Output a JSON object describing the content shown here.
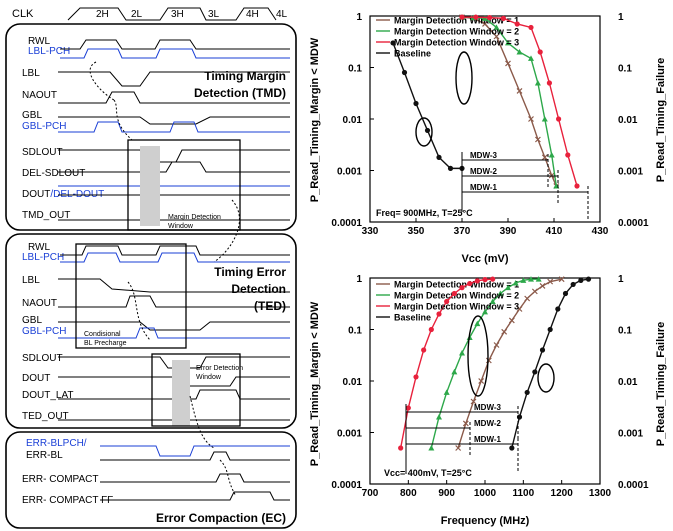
{
  "timing": {
    "header": {
      "clk": "CLK",
      "phases": [
        "2H",
        "2L",
        "3H",
        "3L",
        "4H",
        "4L"
      ]
    },
    "tmd": {
      "signals": [
        "RWL",
        "LBL-PCH",
        "LBL",
        "NAOUT",
        "GBL",
        "GBL-PCH",
        "SDLOUT",
        "DEL-SDLOUT",
        "DOUT",
        "/DEL-DOUT",
        "TMD_OUT"
      ],
      "title_line1": "Timing Margin",
      "title_line2": "Detection (TMD)",
      "window_label_line1": "Margin Detection",
      "window_label_line2": "Window"
    },
    "ted": {
      "signals": [
        "RWL",
        "LBL-PCH",
        "LBL",
        "NAOUT",
        "GBL",
        "GBL-PCH",
        "SDLOUT",
        "DOUT",
        "DOUT_LAT",
        "TED_OUT"
      ],
      "title_line1": "Timing Error",
      "title_line2": "Detection",
      "title_line3": "(TED)",
      "precharge_line1": "Condisional",
      "precharge_line2": "BL Precharge",
      "window_label_line1": "Error Detection",
      "window_label_line2": "Window"
    },
    "ec": {
      "signals": [
        "ERR-BLPCH/",
        "ERR-BL",
        "ERR- COMPACT",
        "ERR- COMPACT FF"
      ],
      "title": "Error Compaction (EC)"
    }
  },
  "chart_data": [
    {
      "type": "line",
      "xlabel": "Vcc (mV)",
      "ylabel_left": "P_Read_Timing_Margin < MDW",
      "ylabel_right": "P_Read_Timing_Failure",
      "xlim": [
        330,
        430
      ],
      "x_ticks": [
        "330",
        "350",
        "370",
        "390",
        "410",
        "430"
      ],
      "ylim": [
        0.0001,
        1
      ],
      "yscale": "log",
      "y_ticks": [
        "1",
        "0.1",
        "0.01",
        "0.001",
        "0.0001"
      ],
      "legend_position": "top-left",
      "annotation": "Freq= 900MHz, T=25°C",
      "mdw_labels": [
        "MDW-3",
        "MDW-2",
        "MDW-1"
      ],
      "series": [
        {
          "name": "Margin Detection Window = 1",
          "color": "#8b5a4a",
          "marker": "x",
          "x": [
            370,
            375,
            380,
            385,
            390,
            395,
            400,
            403,
            406,
            409,
            411
          ],
          "y": [
            0.95,
            0.9,
            0.7,
            0.4,
            0.12,
            0.035,
            0.01,
            0.004,
            0.0018,
            0.0008,
            0.0005
          ]
        },
        {
          "name": "Margin Detection Window = 2",
          "color": "#2da84a",
          "marker": "triangle",
          "x": [
            370,
            375,
            380,
            385,
            390,
            395,
            400,
            403,
            406,
            409,
            411
          ],
          "y": [
            0.95,
            0.93,
            0.9,
            0.6,
            0.3,
            0.2,
            0.15,
            0.05,
            0.01,
            0.002,
            0.0005
          ]
        },
        {
          "name": "Margin Detection Window = 3",
          "color": "#e8213c",
          "marker": "circle",
          "x": [
            370,
            376,
            382,
            388,
            394,
            400,
            404,
            408,
            412,
            416,
            420
          ],
          "y": [
            0.95,
            0.95,
            0.93,
            0.9,
            0.7,
            0.6,
            0.2,
            0.05,
            0.01,
            0.002,
            0.0005
          ]
        },
        {
          "name": "Baseline",
          "color": "#111111",
          "marker": "circle",
          "x": [
            340,
            345,
            350,
            355,
            360,
            365,
            370
          ],
          "y": [
            0.3,
            0.08,
            0.02,
            0.006,
            0.0018,
            0.0011,
            0.0011
          ]
        }
      ]
    },
    {
      "type": "line",
      "xlabel": "Frequency (MHz)",
      "ylabel_left": "P_Read_Timing_Margin < MDW",
      "ylabel_right": "P_Read_Timing_Failure",
      "xlim": [
        700,
        1300
      ],
      "x_ticks": [
        "700",
        "800",
        "900",
        "1000",
        "1100",
        "1200",
        "1300"
      ],
      "ylim": [
        0.0001,
        1
      ],
      "yscale": "log",
      "y_ticks": [
        "1",
        "0.1",
        "0.01",
        "0.001",
        "0.0001"
      ],
      "legend_position": "top-left",
      "annotation": "Vcc= 400mV, T=25°C",
      "mdw_labels": [
        "MDW-3",
        "MDW-2",
        "MDW-1"
      ],
      "series": [
        {
          "name": "Margin Detection Window = 1",
          "color": "#8b5a4a",
          "marker": "x",
          "x": [
            930,
            950,
            970,
            990,
            1010,
            1030,
            1050,
            1070,
            1090,
            1110,
            1130,
            1150,
            1170,
            1200
          ],
          "y": [
            0.0005,
            0.0015,
            0.004,
            0.01,
            0.025,
            0.05,
            0.09,
            0.15,
            0.25,
            0.4,
            0.55,
            0.7,
            0.85,
            0.95
          ]
        },
        {
          "name": "Margin Detection Window = 2",
          "color": "#2da84a",
          "marker": "triangle",
          "x": [
            860,
            880,
            900,
            920,
            940,
            960,
            980,
            1000,
            1020,
            1040,
            1060,
            1080,
            1100,
            1120,
            1140
          ],
          "y": [
            0.0005,
            0.002,
            0.006,
            0.015,
            0.035,
            0.07,
            0.13,
            0.22,
            0.35,
            0.5,
            0.65,
            0.8,
            0.9,
            0.95,
            0.95
          ]
        },
        {
          "name": "Margin Detection Window = 3",
          "color": "#e8213c",
          "marker": "circle",
          "x": [
            780,
            800,
            820,
            840,
            860,
            880,
            900,
            920,
            940,
            960,
            980,
            1000,
            1020
          ],
          "y": [
            0.0005,
            0.003,
            0.012,
            0.04,
            0.1,
            0.2,
            0.35,
            0.5,
            0.65,
            0.78,
            0.88,
            0.93,
            0.95
          ]
        },
        {
          "name": "Baseline",
          "color": "#111111",
          "marker": "circle",
          "x": [
            1070,
            1090,
            1110,
            1130,
            1150,
            1170,
            1190,
            1210,
            1230,
            1250,
            1270
          ],
          "y": [
            0.0005,
            0.002,
            0.006,
            0.015,
            0.04,
            0.1,
            0.25,
            0.5,
            0.75,
            0.9,
            0.95
          ]
        }
      ]
    }
  ]
}
